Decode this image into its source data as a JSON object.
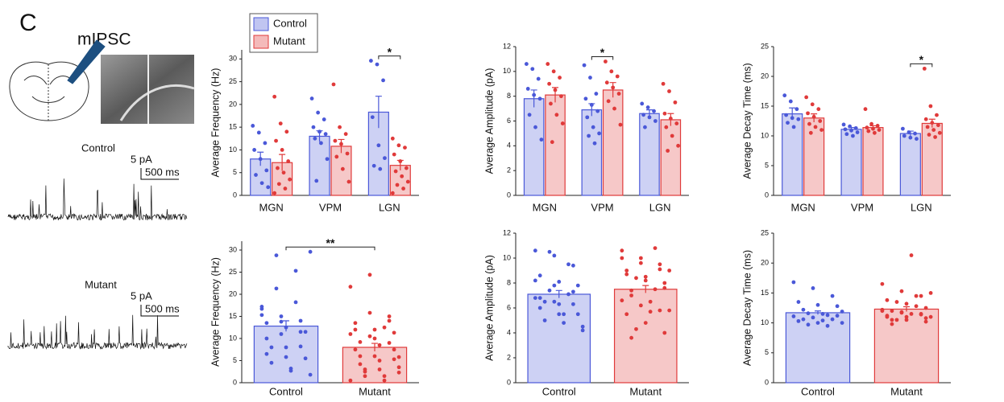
{
  "panel_label": "C",
  "recording_label": "mIPSC",
  "traces": [
    {
      "name": "Control",
      "scale_y": "5 pA",
      "scale_x": "500 ms"
    },
    {
      "name": "Mutant",
      "scale_y": "5 pA",
      "scale_x": "500 ms"
    }
  ],
  "chart_data": [
    {
      "type": "bar",
      "ylabel": "Average Frequency (Hz)",
      "categories": [
        "MGN",
        "VPM",
        "LGN"
      ],
      "legend": "upper left",
      "ylim": [
        0,
        32
      ],
      "yticks": [
        0,
        5,
        10,
        15,
        20,
        25,
        30
      ],
      "series": [
        {
          "name": "Control",
          "color": "#4a58d8",
          "values": [
            8.0,
            13.0,
            18.3
          ],
          "errors": [
            1.5,
            1.2,
            3.5
          ],
          "points": [
            [
              15.3,
              13.8,
              11.5,
              10,
              8,
              5.5,
              4.5,
              2.7,
              1.8
            ],
            [
              21.3,
              18.2,
              16.7,
              15,
              14,
              13.5,
              12.5,
              11.5,
              8,
              3.2
            ],
            [
              29.6,
              28.8,
              25.3,
              17.2,
              11,
              8.2,
              6.5,
              5.8
            ]
          ]
        },
        {
          "name": "Mutant",
          "color": "#e03a3a",
          "values": [
            7.2,
            10.8,
            6.6
          ],
          "errors": [
            1.8,
            1.5,
            1.1
          ],
          "points": [
            [
              21.7,
              15.8,
              14,
              12,
              10,
              7.5,
              6,
              5,
              3.5,
              2.5,
              1.5,
              0.5
            ],
            [
              24.4,
              15,
              13.5,
              12,
              11.3,
              9.2,
              8.5,
              5.8,
              3
            ],
            [
              12.5,
              11,
              10.5,
              9,
              7.5,
              6,
              5.3,
              4.2,
              3,
              2.3,
              1.5,
              0.5
            ]
          ]
        }
      ],
      "significance": [
        {
          "label": "*",
          "categories": [
            2
          ]
        }
      ]
    },
    {
      "type": "bar",
      "ylabel": "Average Amplitude (pA)",
      "categories": [
        "MGN",
        "VPM",
        "LGN"
      ],
      "ylim": [
        0,
        12
      ],
      "yticks": [
        0,
        2,
        4,
        6,
        8,
        10,
        12
      ],
      "series": [
        {
          "name": "Control",
          "color": "#4a58d8",
          "values": [
            7.8,
            6.9,
            6.6
          ],
          "errors": [
            0.7,
            0.5,
            0.3
          ],
          "points": [
            [
              10.6,
              10.2,
              9.4,
              8.6,
              8.1,
              7.8,
              6.5,
              5.5,
              4.5
            ],
            [
              10.5,
              9.5,
              8.2,
              7.8,
              7.3,
              6.8,
              6.3,
              5.5,
              5,
              4.8,
              4.2
            ],
            [
              7.4,
              7.1,
              6.8,
              6.5,
              6.3,
              6.0,
              5.5
            ]
          ]
        },
        {
          "name": "Mutant",
          "color": "#e03a3a",
          "values": [
            8.1,
            8.5,
            6.1
          ],
          "errors": [
            0.6,
            0.6,
            0.5
          ],
          "points": [
            [
              10.6,
              10,
              9.5,
              9,
              8.5,
              8,
              7.4,
              6.5,
              5.8,
              4.3
            ],
            [
              10.8,
              10,
              9.6,
              9.1,
              8.7,
              8.2,
              7.6,
              7,
              5.7
            ],
            [
              9,
              8.4,
              7.5,
              6.6,
              6.2,
              5.8,
              5.5,
              4.8,
              4,
              3.6
            ]
          ]
        }
      ],
      "significance": [
        {
          "label": "*",
          "categories": [
            1
          ]
        }
      ]
    },
    {
      "type": "bar",
      "ylabel": "Average Decay Time (ms)",
      "categories": [
        "MGN",
        "VPM",
        "LGN"
      ],
      "ylim": [
        0,
        25
      ],
      "yticks": [
        0,
        5,
        10,
        15,
        20,
        25
      ],
      "series": [
        {
          "name": "Control",
          "color": "#4a58d8",
          "values": [
            13.7,
            11.1,
            10.4
          ],
          "errors": [
            1.0,
            0.3,
            0.4
          ],
          "points": [
            [
              16.8,
              15.8,
              14.5,
              13.5,
              13,
              12.8,
              12.2,
              11.5
            ],
            [
              11.9,
              11.6,
              11.3,
              11.1,
              10.9,
              10.6,
              10.3,
              10
            ],
            [
              11.2,
              10.6,
              10.4,
              10,
              9.7,
              9.5
            ]
          ]
        },
        {
          "name": "Mutant",
          "color": "#e03a3a",
          "values": [
            13.0,
            11.4,
            12.1
          ],
          "errors": [
            0.7,
            0.3,
            0.7
          ],
          "points": [
            [
              16.5,
              15.3,
              14.5,
              13.8,
              13.2,
              12.5,
              12,
              11.5,
              11,
              10.5
            ],
            [
              14.5,
              12,
              11.7,
              11.4,
              11.2,
              11,
              10.8,
              10.5
            ],
            [
              21.3,
              15,
              13.5,
              12.8,
              12.2,
              11.8,
              11.5,
              11,
              10.5,
              10.2,
              9.8
            ]
          ]
        }
      ],
      "significance": [
        {
          "label": "*",
          "categories": [
            2
          ]
        }
      ]
    },
    {
      "type": "bar",
      "ylabel": "Average Frequency (Hz)",
      "categories": [
        "Control",
        "Mutant"
      ],
      "values": [
        12.8,
        8.0
      ],
      "errors": [
        1.2,
        0.9
      ],
      "colors": [
        "#4a58d8",
        "#e03a3a"
      ],
      "ylim": [
        0,
        32
      ],
      "yticks": [
        0,
        5,
        10,
        15,
        20,
        25,
        30
      ],
      "significance": [
        {
          "label": "**",
          "categories": [
            0,
            1
          ]
        }
      ]
    },
    {
      "type": "bar",
      "ylabel": "Average Amplitude (pA)",
      "categories": [
        "Control",
        "Mutant"
      ],
      "values": [
        7.1,
        7.5
      ],
      "errors": [
        0.3,
        0.3
      ],
      "colors": [
        "#4a58d8",
        "#e03a3a"
      ],
      "ylim": [
        0,
        12
      ],
      "yticks": [
        0,
        2,
        4,
        6,
        8,
        10,
        12
      ]
    },
    {
      "type": "bar",
      "ylabel": "Average Decay Time (ms)",
      "categories": [
        "Control",
        "Mutant"
      ],
      "values": [
        11.7,
        12.3
      ],
      "errors": [
        0.3,
        0.4
      ],
      "colors": [
        "#4a58d8",
        "#e03a3a"
      ],
      "ylim": [
        0,
        25
      ],
      "yticks": [
        0,
        5,
        10,
        15,
        20,
        25
      ]
    }
  ]
}
